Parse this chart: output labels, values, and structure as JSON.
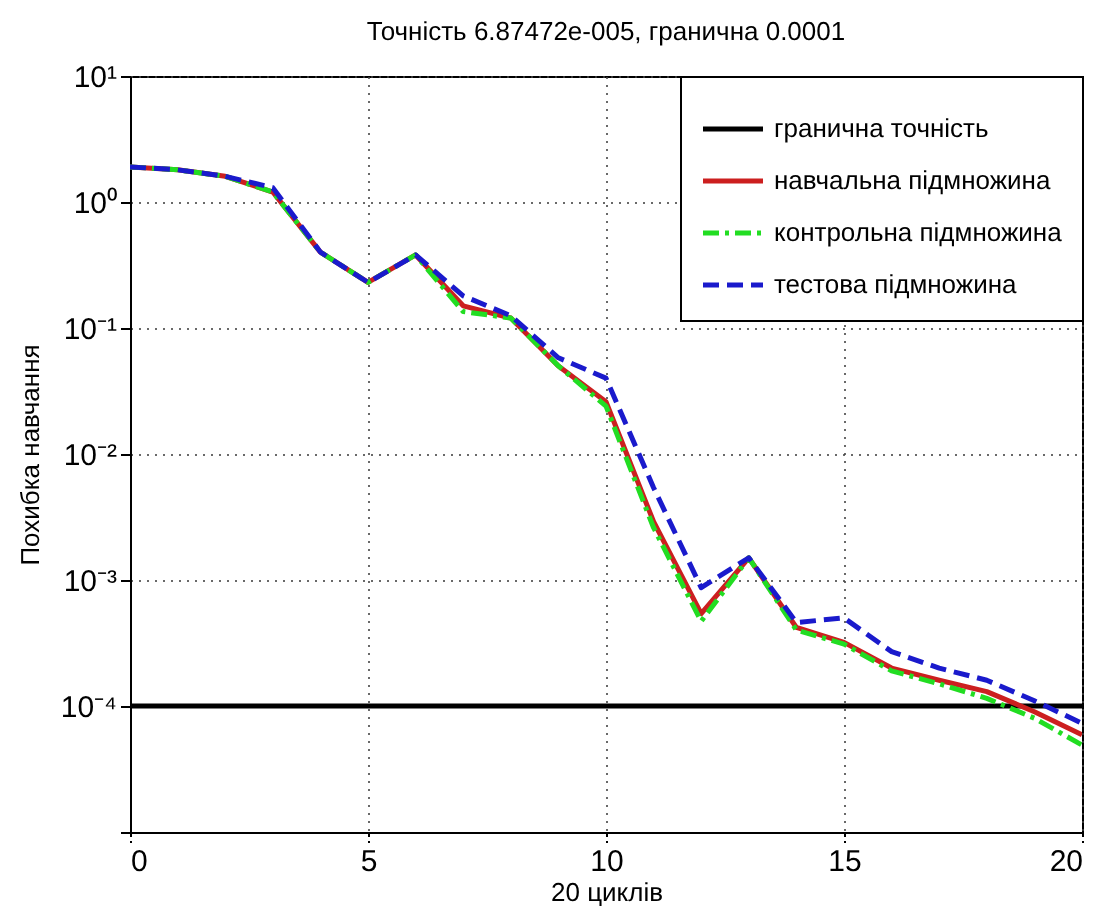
{
  "chart_data": {
    "type": "line",
    "title": "Точність 6.87472e-005, гранична 0.0001",
    "xlabel": "20 циклів",
    "ylabel": "Похибка навчання",
    "log": "y",
    "grid": true,
    "legend": "top right",
    "xlim": [
      0,
      20
    ],
    "xticks": [
      0,
      5,
      10,
      15,
      20
    ],
    "ylim": [
      1e-05,
      10
    ],
    "yticks": [
      {
        "value": 1e-05,
        "label": null
      },
      {
        "value": 0.0001,
        "label": "10⁻⁴"
      },
      {
        "value": 0.001,
        "label": "10⁻³"
      },
      {
        "value": 0.01,
        "label": "10⁻²"
      },
      {
        "value": 0.1,
        "label": "10⁻¹"
      },
      {
        "value": 1,
        "label": "10⁰"
      },
      {
        "value": 10,
        "label": "10¹"
      }
    ],
    "x": [
      0,
      1,
      2,
      3,
      4,
      5,
      6,
      7,
      8,
      9,
      10,
      11,
      12,
      13,
      14,
      15,
      16,
      17,
      18,
      19,
      20
    ],
    "series": [
      {
        "name": "гранична точність",
        "color": "#000000",
        "line_style": "solid",
        "x": [
          0,
          20
        ],
        "values": [
          0.0001,
          0.0001
        ]
      },
      {
        "name": "навчальна підмножина",
        "color": "#cc1f1f",
        "line_style": "solid",
        "values": [
          1.9,
          1.8,
          1.6,
          1.2,
          0.4,
          0.23,
          0.38,
          0.15,
          0.12,
          0.05,
          0.026,
          0.0029,
          0.00054,
          0.0015,
          0.00042,
          0.00032,
          0.0002,
          0.00016,
          0.00013,
          9e-05,
          5.9e-05
        ]
      },
      {
        "name": "контрольна підмножина",
        "color": "#22dd22",
        "line_style": "dashdot",
        "values": [
          1.9,
          1.8,
          1.6,
          1.2,
          0.4,
          0.23,
          0.38,
          0.135,
          0.12,
          0.05,
          0.024,
          0.0026,
          0.00047,
          0.0015,
          0.0004,
          0.00031,
          0.00019,
          0.00015,
          0.000115,
          8e-05,
          4.9e-05
        ]
      },
      {
        "name": "тестова підмножина",
        "color": "#1a1acc",
        "line_style": "dashed",
        "values": [
          1.9,
          1.8,
          1.6,
          1.3,
          0.4,
          0.23,
          0.38,
          0.18,
          0.125,
          0.058,
          0.04,
          0.0054,
          0.00087,
          0.0015,
          0.00046,
          0.0005,
          0.00027,
          0.0002,
          0.00016,
          0.00011,
          7.3e-05
        ]
      }
    ]
  }
}
